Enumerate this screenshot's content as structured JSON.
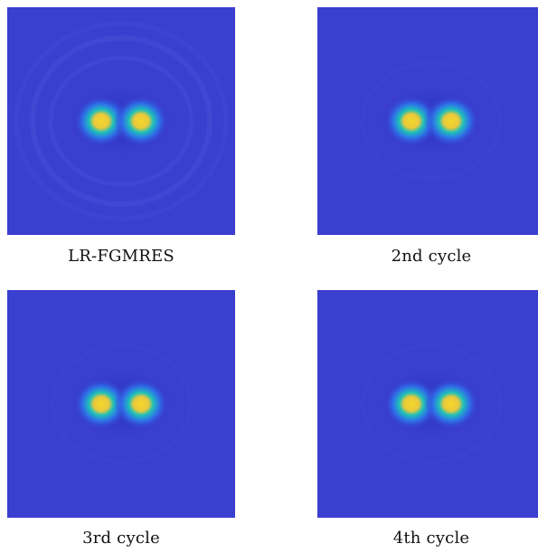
{
  "figure": {
    "colormap": "parula",
    "colors": {
      "background": "#3a3fd0",
      "peak": "#f5d62b",
      "mid": "#20c0b8",
      "low": "#2d72e8"
    },
    "panels": [
      {
        "caption": "LR-FGMRES",
        "ringing": "strong"
      },
      {
        "caption": "2nd cycle",
        "ringing": "faint"
      },
      {
        "caption": "3rd cycle",
        "ringing": "faint"
      },
      {
        "caption": "4th cycle",
        "ringing": "faint"
      }
    ]
  }
}
